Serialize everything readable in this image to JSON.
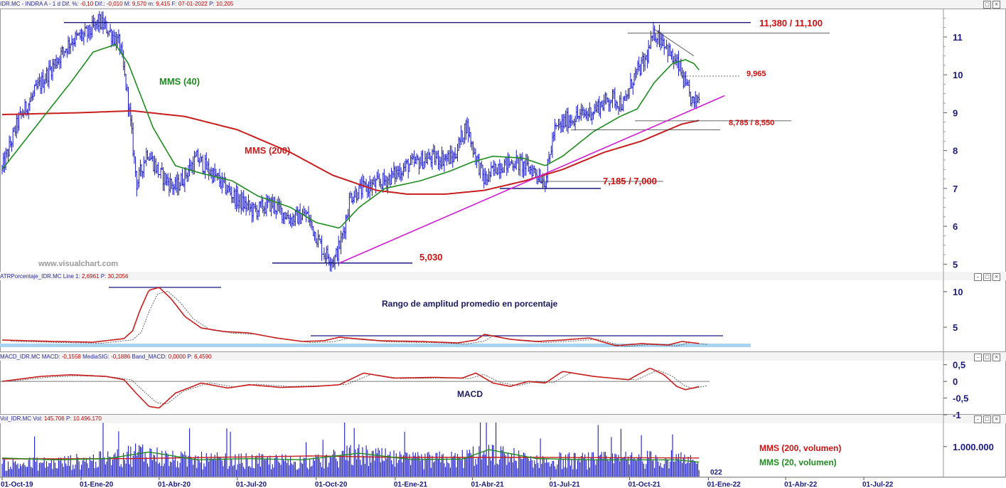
{
  "headers": {
    "main": {
      "name": "IDR.MC - INDRA A - 1 d",
      "diff_pct_label": "Dif. %:",
      "diff_pct": "-0,10",
      "diff_label": "Dif.:",
      "diff": "-0,010",
      "max_label": "M:",
      "max": "9,570",
      "min_label": "m:",
      "min": "9,415",
      "date_label": "F:",
      "date": "07-01-2022",
      "price_label": "P:",
      "price": "10,205"
    },
    "atr": {
      "name": "ATRPorcentaje_IDR.MC",
      "line_label": "Line 1:",
      "line": "2,6961",
      "price_label": "P:",
      "price": "30,2056"
    },
    "macd": {
      "name": "MACD_IDR.MC",
      "macd_label": "MACD:",
      "macd": "-0,1558",
      "signal_label": "MediaSIG:",
      "signal": "-0,1886",
      "band_label": "Band_MACD:",
      "band": "0,0000",
      "price_label": "P:",
      "price": "6,4590"
    },
    "vol": {
      "name": "Vol_IDR.MC",
      "vol_label": "Vol:",
      "vol": "145.706",
      "price_label": "P:",
      "price": "10.496.170"
    }
  },
  "panel_buttons": [
    "–",
    "□",
    "×"
  ],
  "colors": {
    "price_bars": "#1a1ac8",
    "mms40": "#1e8c1e",
    "mms200": "#c81e1e",
    "trendline": "#d21ed2",
    "level_lines": "#1a1a80",
    "labels_red": "#d01010",
    "axis_text": "#1a1a80",
    "vol_mms200": "#c81e1e",
    "vol_mms20": "#1e8c1e",
    "atr_band": "#a8d4f0"
  },
  "watermark": "www.visualchart.com",
  "x_axis": {
    "labels": [
      "01-Oct-19",
      "01-Ene-20",
      "01-Abr-20",
      "01-Jul-20",
      "01-Oct-20",
      "01-Ene-21",
      "01-Abr-21",
      "01-Jul-21",
      "01-Oct-21",
      "01-Ene-22",
      "01-Abr-22",
      "01-Jul-22"
    ],
    "cut_label": "022"
  },
  "chart_data": [
    {
      "panel": "price",
      "type": "line",
      "y_ticks": [
        "5",
        "6",
        "7",
        "8",
        "9",
        "10",
        "11"
      ],
      "ylim": [
        4.8,
        11.75
      ],
      "series": [
        {
          "name": "",
          "kind": "ohlc-bars",
          "x": [
            "2019-10-01",
            "2019-10-20",
            "2019-11-10",
            "2019-12-01",
            "2019-12-20",
            "2020-01-10",
            "2020-01-22",
            "2020-02-01",
            "2020-02-15",
            "2020-02-25",
            "2020-03-06",
            "2020-03-18",
            "2020-04-01",
            "2020-04-20",
            "2020-05-15",
            "2020-06-10",
            "2020-07-01",
            "2020-07-20",
            "2020-08-10",
            "2020-09-01",
            "2020-09-20",
            "2020-10-10",
            "2020-10-22",
            "2020-10-30",
            "2020-11-10",
            "2020-11-25",
            "2020-12-20",
            "2021-01-15",
            "2021-02-10",
            "2021-03-10",
            "2021-03-25",
            "2021-04-01",
            "2021-04-15",
            "2021-05-01",
            "2021-05-20",
            "2021-06-10",
            "2021-06-25",
            "2021-07-05",
            "2021-07-20",
            "2021-08-15",
            "2021-09-10",
            "2021-09-25",
            "2021-10-05",
            "2021-10-20",
            "2021-10-30",
            "2021-11-10",
            "2021-11-20",
            "2021-11-28",
            "2021-12-05",
            "2021-12-15",
            "2021-12-22"
          ],
          "y": [
            7.5,
            8.8,
            9.6,
            10.3,
            10.9,
            11.1,
            11.4,
            11.2,
            10.8,
            9.3,
            7.1,
            8.0,
            7.4,
            7.0,
            7.8,
            7.2,
            6.7,
            6.4,
            6.6,
            6.2,
            6.3,
            5.3,
            5.1,
            5.6,
            6.8,
            7.0,
            7.2,
            7.6,
            7.8,
            7.8,
            8.7,
            8.1,
            7.2,
            7.6,
            7.7,
            7.5,
            7.2,
            8.5,
            8.8,
            9.0,
            9.4,
            9.2,
            9.9,
            10.4,
            11.1,
            10.9,
            10.4,
            10.2,
            9.7,
            9.2,
            9.5
          ]
        },
        {
          "name": "MMS (40)",
          "x": [
            "2019-10-01",
            "2019-11-15",
            "2019-12-20",
            "2020-01-15",
            "2020-02-10",
            "2020-02-25",
            "2020-03-25",
            "2020-04-20",
            "2020-05-20",
            "2020-06-25",
            "2020-07-25",
            "2020-09-01",
            "2020-10-01",
            "2020-10-28",
            "2020-11-20",
            "2020-12-20",
            "2021-01-30",
            "2021-03-05",
            "2021-04-01",
            "2021-04-25",
            "2021-05-30",
            "2021-06-25",
            "2021-07-15",
            "2021-08-20",
            "2021-09-20",
            "2021-10-10",
            "2021-10-30",
            "2021-11-20",
            "2021-12-05",
            "2021-12-15",
            "2021-12-22"
          ],
          "y": [
            7.5,
            8.8,
            9.8,
            10.6,
            10.8,
            10.3,
            8.6,
            7.6,
            7.4,
            7.2,
            6.8,
            6.5,
            6.1,
            5.95,
            6.5,
            7.0,
            7.2,
            7.45,
            7.7,
            7.85,
            7.8,
            7.6,
            7.85,
            8.5,
            8.9,
            9.1,
            9.8,
            10.3,
            10.4,
            10.3,
            10.1
          ]
        },
        {
          "name": "MMS (200)",
          "x": [
            "2019-10-01",
            "2020-01-01",
            "2020-03-01",
            "2020-05-01",
            "2020-07-01",
            "2020-09-01",
            "2020-10-20",
            "2020-12-10",
            "2021-01-15",
            "2021-03-01",
            "2021-04-15",
            "2021-06-01",
            "2021-07-15",
            "2021-09-01",
            "2021-10-15",
            "2021-12-01",
            "2021-12-22"
          ],
          "y": [
            8.95,
            9.0,
            9.05,
            8.9,
            8.55,
            7.95,
            7.35,
            6.95,
            6.85,
            6.85,
            6.95,
            7.2,
            7.5,
            7.95,
            8.25,
            8.7,
            8.8
          ]
        }
      ],
      "levels": [
        {
          "label": "11,380 / 11,100",
          "values": [
            11.38,
            11.1
          ]
        },
        {
          "label": "9,965",
          "values": [
            9.965
          ]
        },
        {
          "label": "8,785 / 8,550",
          "values": [
            8.785,
            8.55
          ]
        },
        {
          "label": "7,185 / 7,000",
          "values": [
            7.185,
            7.0
          ]
        },
        {
          "label": "5,030",
          "values": [
            5.03
          ]
        }
      ],
      "trendline": {
        "x": [
          "2020-10-28",
          "2022-01-20"
        ],
        "y": [
          5.03,
          9.45
        ]
      },
      "annotations": [
        "MMS (40)",
        "MMS (200)"
      ]
    },
    {
      "panel": "atr",
      "type": "line",
      "y_ticks": [
        "10",
        "5"
      ],
      "ylim": [
        1.5,
        11.5
      ],
      "title": "Rango de amplitud promedio en porcentaje",
      "series": [
        {
          "name": "",
          "x": [
            "2019-10-01",
            "2019-12-01",
            "2020-01-15",
            "2020-02-20",
            "2020-03-01",
            "2020-03-10",
            "2020-03-20",
            "2020-04-01",
            "2020-04-15",
            "2020-05-01",
            "2020-05-20",
            "2020-06-15",
            "2020-07-15",
            "2020-08-15",
            "2020-09-15",
            "2020-10-10",
            "2020-10-28",
            "2020-11-15",
            "2020-12-15",
            "2021-01-30",
            "2021-03-15",
            "2021-04-05",
            "2021-04-15",
            "2021-05-15",
            "2021-06-15",
            "2021-07-15",
            "2021-08-15",
            "2021-09-15",
            "2021-10-15",
            "2021-11-15",
            "2021-12-01",
            "2021-12-22"
          ],
          "y": [
            3.2,
            3.0,
            2.9,
            3.4,
            4.5,
            7.5,
            10.2,
            10.6,
            9.0,
            6.5,
            4.9,
            4.4,
            4.2,
            3.5,
            3.0,
            3.1,
            3.6,
            3.4,
            3.1,
            3.0,
            2.8,
            3.2,
            4.0,
            3.3,
            3.0,
            3.2,
            3.5,
            2.4,
            2.7,
            2.5,
            3.0,
            2.7
          ]
        }
      ],
      "levels": [
        10.6,
        3.8
      ]
    },
    {
      "panel": "macd",
      "type": "line",
      "y_ticks": [
        "0,5",
        "0",
        "-0,5",
        "-1"
      ],
      "ylim": [
        -1.0,
        0.6
      ],
      "title": "MACD",
      "series": [
        {
          "name": "",
          "x": [
            "2019-10-01",
            "2019-11-15",
            "2019-12-20",
            "2020-01-30",
            "2020-02-20",
            "2020-03-05",
            "2020-03-20",
            "2020-04-01",
            "2020-04-20",
            "2020-05-20",
            "2020-06-20",
            "2020-07-15",
            "2020-08-20",
            "2020-09-30",
            "2020-10-28",
            "2020-11-25",
            "2020-12-30",
            "2021-02-15",
            "2021-03-20",
            "2021-04-05",
            "2021-04-25",
            "2021-05-15",
            "2021-06-05",
            "2021-06-25",
            "2021-07-15",
            "2021-08-20",
            "2021-09-30",
            "2021-10-25",
            "2021-11-10",
            "2021-11-25",
            "2021-12-05",
            "2021-12-22"
          ],
          "y": [
            0.0,
            0.15,
            0.2,
            0.15,
            0.05,
            -0.35,
            -0.75,
            -0.8,
            -0.35,
            -0.05,
            -0.2,
            -0.1,
            -0.18,
            -0.15,
            -0.1,
            0.25,
            0.1,
            0.12,
            0.1,
            0.25,
            -0.05,
            -0.15,
            0.0,
            -0.05,
            0.3,
            0.15,
            0.05,
            0.4,
            0.2,
            -0.15,
            -0.25,
            -0.15
          ]
        }
      ]
    },
    {
      "panel": "volume",
      "type": "bar",
      "y_ticks": [
        "1.000.000"
      ],
      "ylim": [
        0,
        1800000
      ],
      "annotations": [
        "MMS (200, volumen)",
        "MMS (20, volumen)"
      ],
      "series": [
        {
          "name": "",
          "x": [
            "2019-10-01",
            "2019-12-01",
            "2020-02-01",
            "2020-03-10",
            "2020-04-15",
            "2020-06-01",
            "2020-08-01",
            "2020-10-01",
            "2020-11-15",
            "2021-01-15",
            "2021-03-15",
            "2021-04-15",
            "2021-06-01",
            "2021-08-01",
            "2021-10-01",
            "2021-11-20",
            "2021-12-22"
          ],
          "y": [
            500000,
            560000,
            700000,
            1000000,
            700000,
            650000,
            620000,
            600000,
            900000,
            650000,
            700000,
            1000000,
            700000,
            650000,
            700000,
            720000,
            500000
          ]
        },
        {
          "name": "MMS (20, volumen)",
          "x": [
            "2019-10-01",
            "2019-12-01",
            "2020-02-01",
            "2020-03-20",
            "2020-05-15",
            "2020-07-15",
            "2020-09-15",
            "2020-11-20",
            "2021-01-20",
            "2021-03-20",
            "2021-04-20",
            "2021-06-15",
            "2021-08-15",
            "2021-10-15",
            "2021-11-25",
            "2021-12-22"
          ],
          "y": [
            620000,
            560000,
            600000,
            820000,
            560000,
            600000,
            560000,
            780000,
            570000,
            580000,
            900000,
            600000,
            560000,
            560000,
            560000,
            480000
          ]
        },
        {
          "name": "MMS (200, volumen)",
          "x": [
            "2019-10-01",
            "2020-03-01",
            "2020-06-01",
            "2020-10-01",
            "2021-01-01",
            "2021-06-01",
            "2021-12-22"
          ],
          "y": [
            590000,
            600000,
            640000,
            690000,
            640000,
            640000,
            620000
          ]
        }
      ]
    }
  ]
}
